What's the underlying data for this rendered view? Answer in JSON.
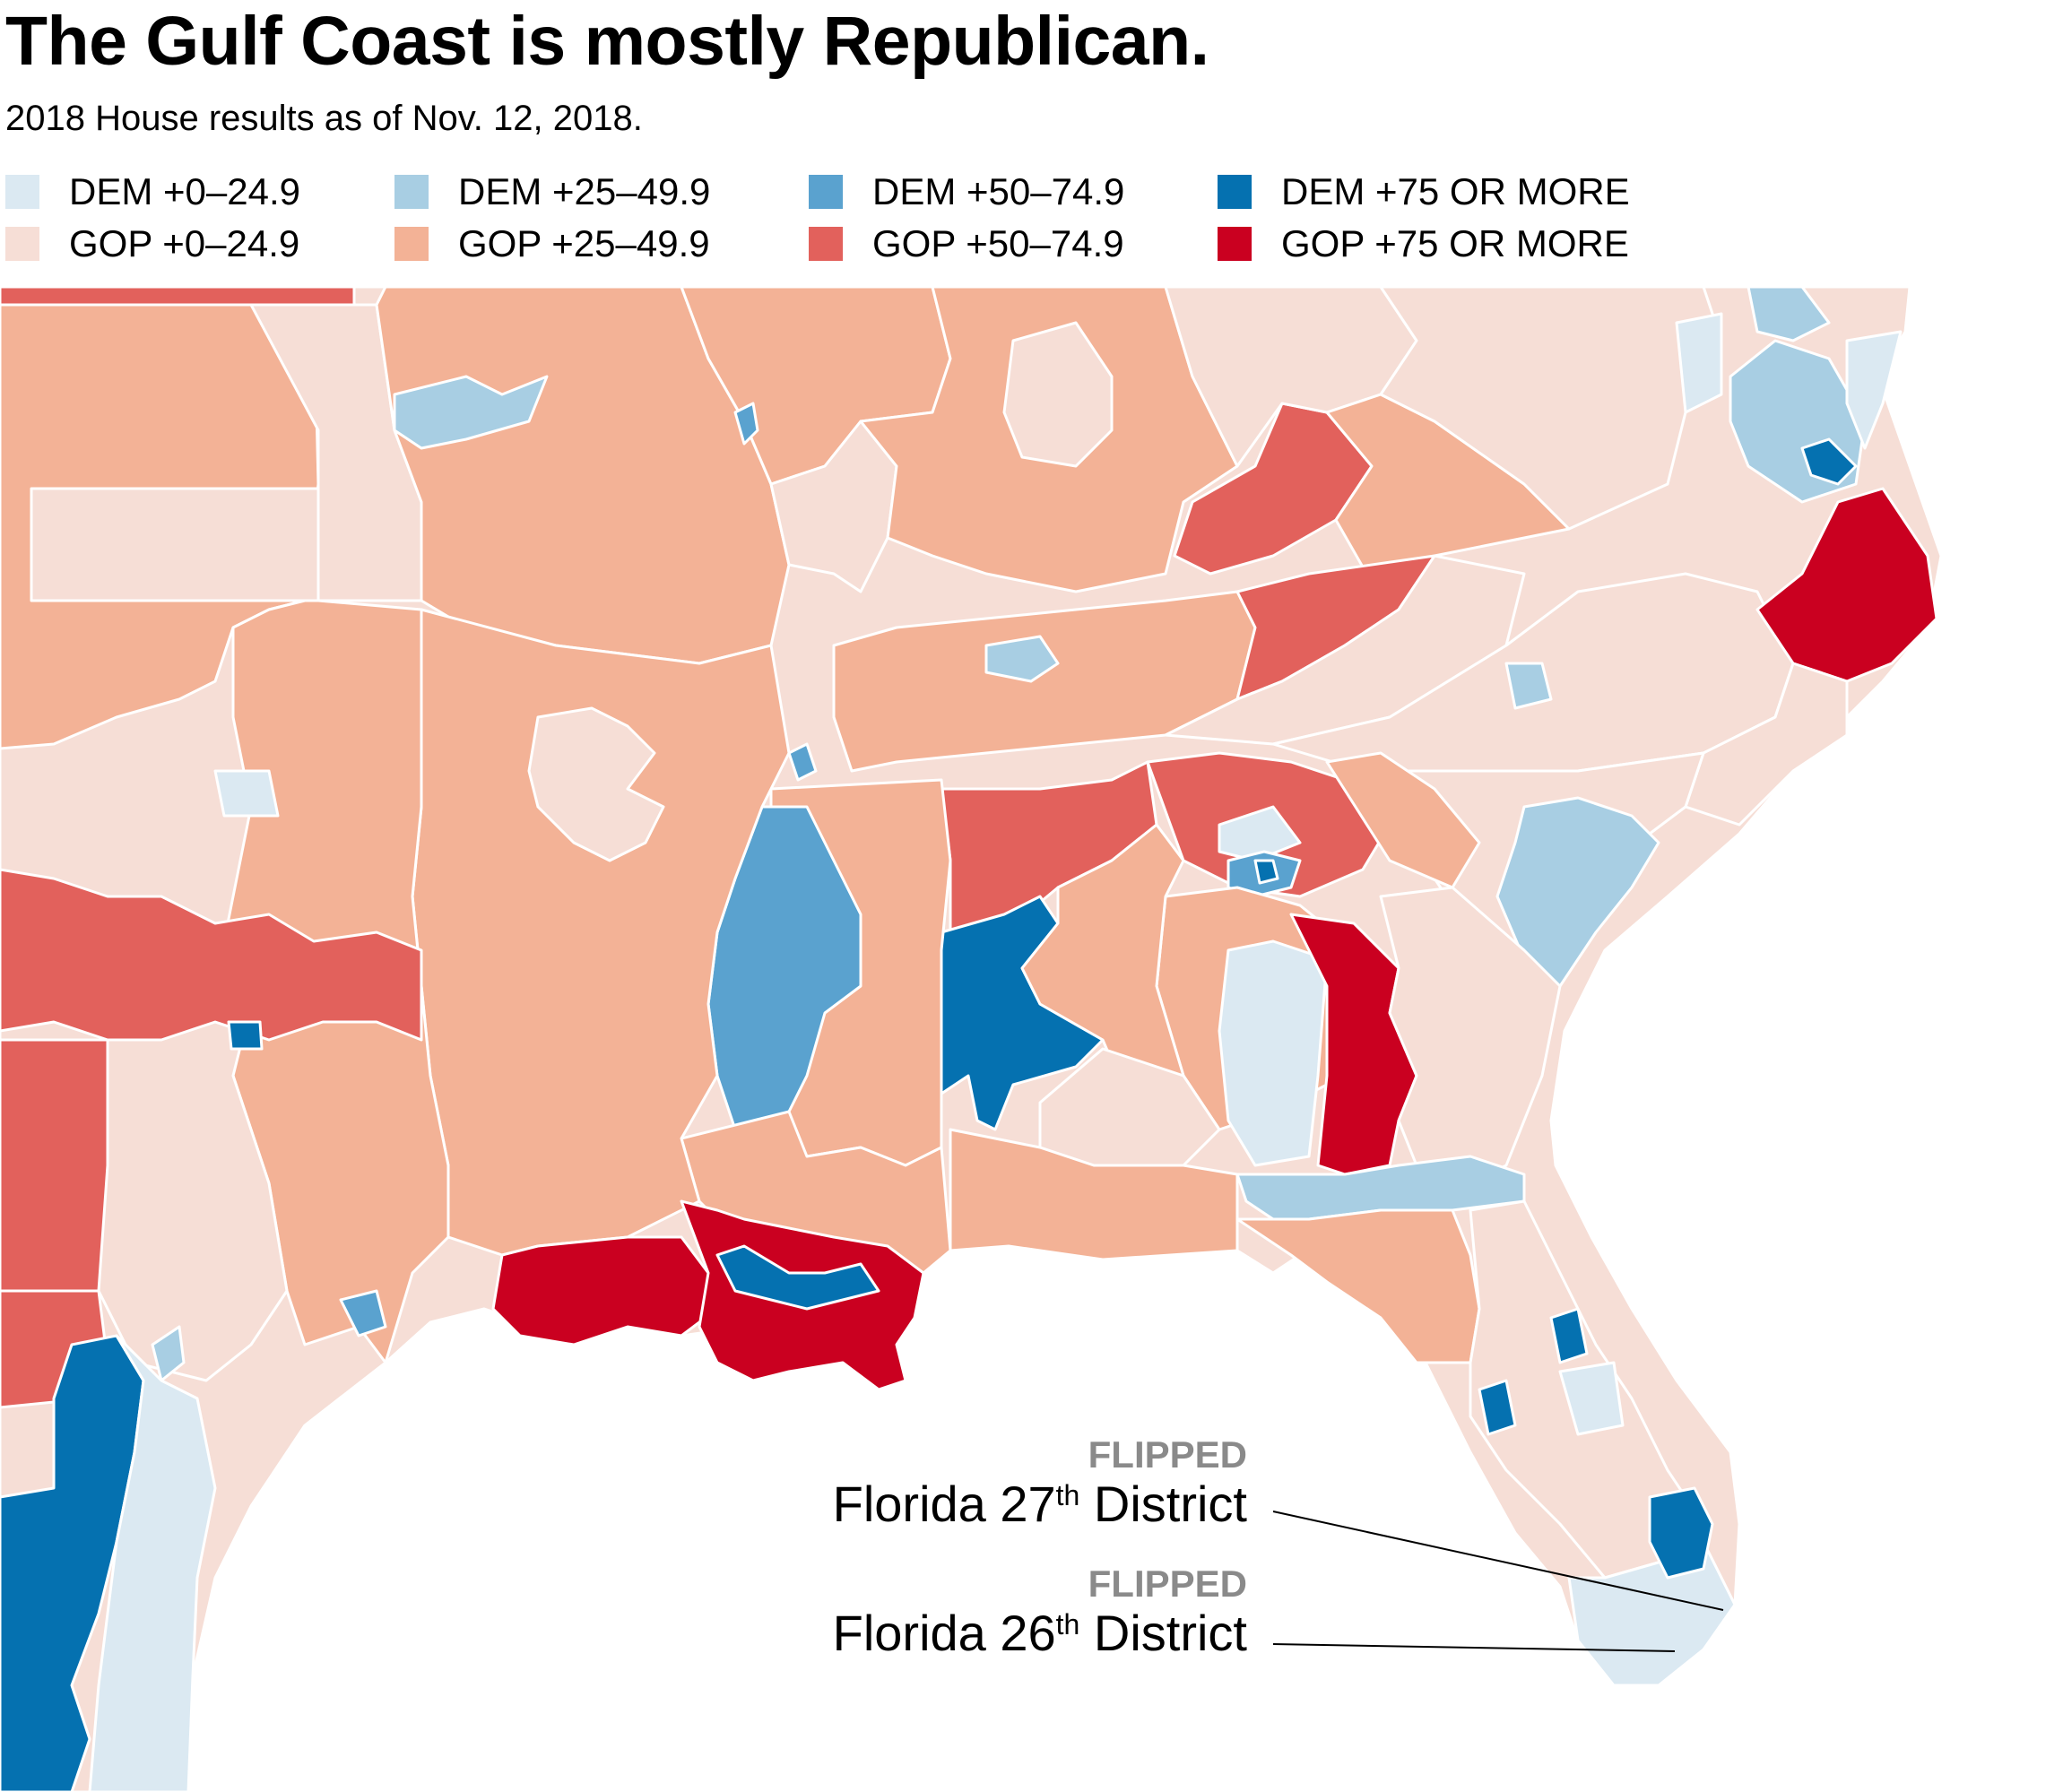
{
  "title": "The Gulf Coast is mostly Republican.",
  "subtitle": "2018 House results as of Nov. 12, 2018.",
  "colors": {
    "dem_0_24": "#dbe9f2",
    "dem_25_49": "#a8cee3",
    "dem_50_74": "#5aa2cf",
    "dem_75": "#0571b0",
    "gop_0_24": "#f6ded6",
    "gop_25_49": "#f3b296",
    "gop_50_74": "#e2615c",
    "gop_75": "#ca0020"
  },
  "legend": [
    {
      "label": "DEM +0–24.9",
      "color": "#dbe9f2"
    },
    {
      "label": "DEM +25–49.9",
      "color": "#a8cee3"
    },
    {
      "label": "DEM +50–74.9",
      "color": "#5aa2cf"
    },
    {
      "label": "DEM +75 OR MORE",
      "color": "#0571b0"
    },
    {
      "label": "GOP +0–24.9",
      "color": "#f6ded6"
    },
    {
      "label": "GOP +25–49.9",
      "color": "#f3b296"
    },
    {
      "label": "GOP +50–74.9",
      "color": "#e2615c"
    },
    {
      "label": "GOP +75 OR MORE",
      "color": "#ca0020"
    }
  ],
  "annotations": [
    {
      "status": "FLIPPED",
      "prefix": "Florida 27",
      "ordinal": "th",
      "suffix": " District"
    },
    {
      "status": "FLIPPED",
      "prefix": "Florida 26",
      "ordinal": "th",
      "suffix": " District"
    }
  ]
}
